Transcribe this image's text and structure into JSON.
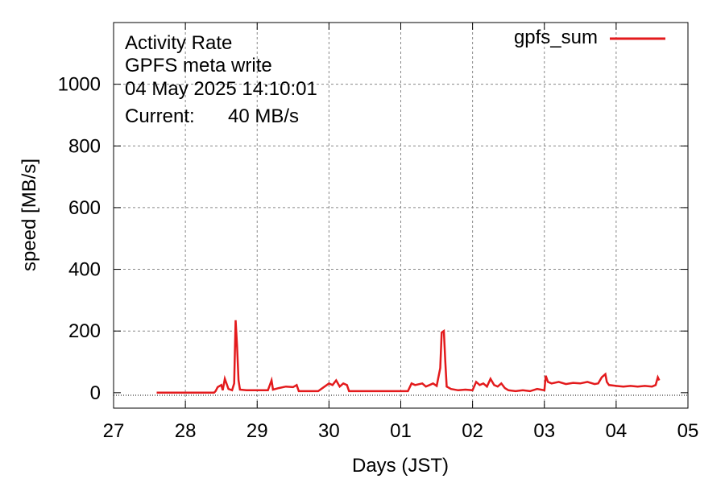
{
  "chart_data": {
    "type": "line",
    "title_lines": [
      "Activity Rate",
      "GPFS meta write",
      "04 May 2025 14:10:01"
    ],
    "current_label": "Current:",
    "current_value": "40 MB/s",
    "xlabel": "Days (JST)",
    "ylabel": "speed [MB/s]",
    "x_ticks": [
      "27",
      "28",
      "29",
      "30",
      "01",
      "02",
      "03",
      "04",
      "05"
    ],
    "y_ticks": [
      "0",
      "200",
      "400",
      "600",
      "800",
      "1000"
    ],
    "xlim": [
      0,
      8
    ],
    "ylim": [
      -50,
      1200
    ],
    "grid": true,
    "legend_position": "top-right",
    "series": [
      {
        "name": "gpfs_sum",
        "color": "#e31a1c",
        "points": [
          [
            0.6,
            0
          ],
          [
            1.0,
            0
          ],
          [
            1.4,
            0
          ],
          [
            1.42,
            5
          ],
          [
            1.45,
            18
          ],
          [
            1.5,
            25
          ],
          [
            1.52,
            8
          ],
          [
            1.55,
            45
          ],
          [
            1.6,
            12
          ],
          [
            1.65,
            8
          ],
          [
            1.68,
            30
          ],
          [
            1.7,
            235
          ],
          [
            1.72,
            150
          ],
          [
            1.74,
            40
          ],
          [
            1.76,
            10
          ],
          [
            1.85,
            8
          ],
          [
            2.0,
            8
          ],
          [
            2.15,
            8
          ],
          [
            2.2,
            40
          ],
          [
            2.22,
            10
          ],
          [
            2.3,
            15
          ],
          [
            2.4,
            20
          ],
          [
            2.5,
            18
          ],
          [
            2.55,
            25
          ],
          [
            2.58,
            5
          ],
          [
            2.7,
            5
          ],
          [
            2.85,
            5
          ],
          [
            3.0,
            30
          ],
          [
            3.05,
            25
          ],
          [
            3.1,
            40
          ],
          [
            3.15,
            20
          ],
          [
            3.2,
            30
          ],
          [
            3.25,
            25
          ],
          [
            3.28,
            5
          ],
          [
            3.5,
            5
          ],
          [
            3.8,
            5
          ],
          [
            4.1,
            5
          ],
          [
            4.15,
            30
          ],
          [
            4.2,
            25
          ],
          [
            4.3,
            30
          ],
          [
            4.35,
            20
          ],
          [
            4.4,
            25
          ],
          [
            4.45,
            30
          ],
          [
            4.5,
            22
          ],
          [
            4.55,
            80
          ],
          [
            4.57,
            195
          ],
          [
            4.6,
            200
          ],
          [
            4.62,
            100
          ],
          [
            4.64,
            20
          ],
          [
            4.7,
            12
          ],
          [
            4.8,
            8
          ],
          [
            4.9,
            10
          ],
          [
            5.0,
            8
          ],
          [
            5.05,
            35
          ],
          [
            5.1,
            25
          ],
          [
            5.15,
            30
          ],
          [
            5.2,
            20
          ],
          [
            5.25,
            45
          ],
          [
            5.3,
            25
          ],
          [
            5.35,
            20
          ],
          [
            5.4,
            30
          ],
          [
            5.45,
            15
          ],
          [
            5.5,
            8
          ],
          [
            5.6,
            5
          ],
          [
            5.7,
            8
          ],
          [
            5.8,
            5
          ],
          [
            5.9,
            12
          ],
          [
            5.95,
            10
          ],
          [
            6.0,
            8
          ],
          [
            6.02,
            55
          ],
          [
            6.05,
            35
          ],
          [
            6.1,
            30
          ],
          [
            6.2,
            35
          ],
          [
            6.3,
            28
          ],
          [
            6.4,
            32
          ],
          [
            6.5,
            30
          ],
          [
            6.6,
            35
          ],
          [
            6.7,
            28
          ],
          [
            6.75,
            30
          ],
          [
            6.8,
            50
          ],
          [
            6.85,
            60
          ],
          [
            6.87,
            35
          ],
          [
            6.9,
            25
          ],
          [
            7.0,
            22
          ],
          [
            7.1,
            20
          ],
          [
            7.2,
            22
          ],
          [
            7.3,
            20
          ],
          [
            7.4,
            22
          ],
          [
            7.5,
            20
          ],
          [
            7.55,
            25
          ],
          [
            7.58,
            50
          ],
          [
            7.6,
            40
          ]
        ]
      }
    ]
  }
}
